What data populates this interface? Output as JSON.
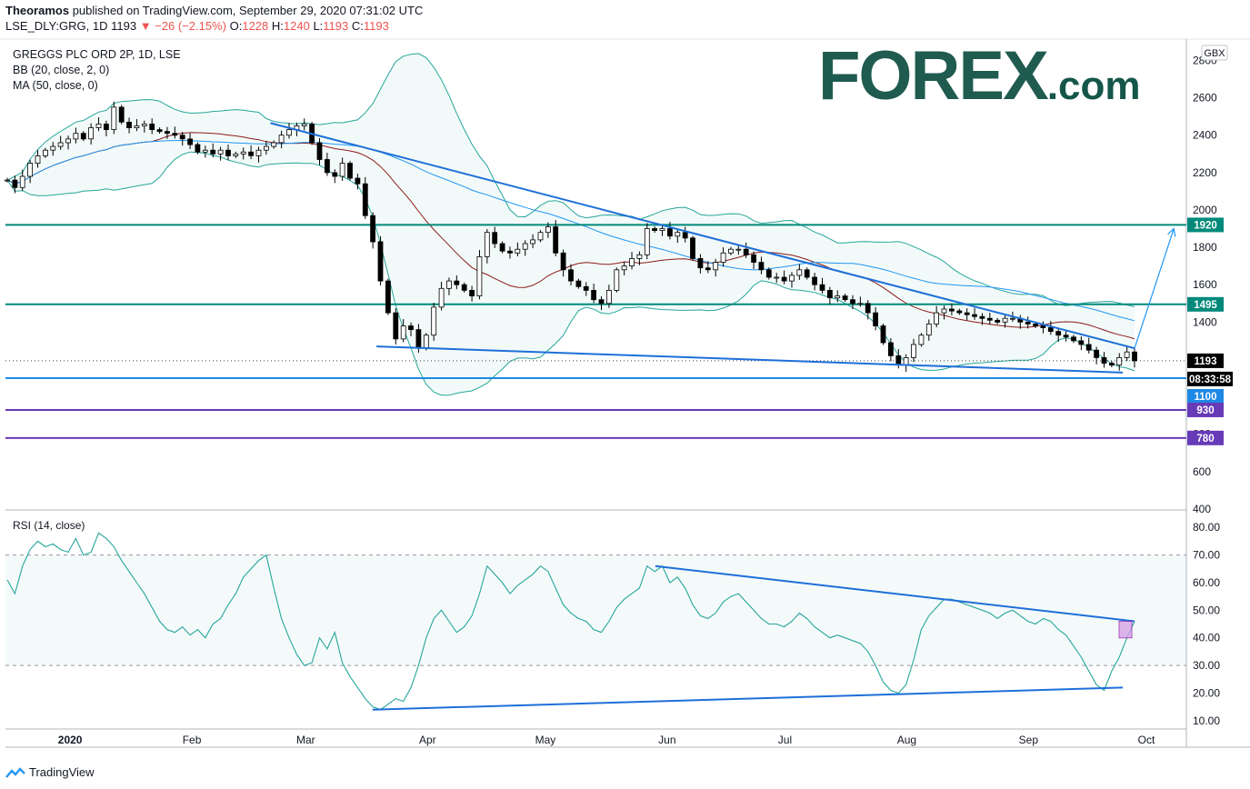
{
  "header": {
    "author": "Theoramos",
    "published_text": " published on TradingView.com, September 29, 2020 07:31:02 UTC",
    "symbol": "LSE_DLY:GRG, 1D",
    "price": "1193",
    "change": "−26 (−2.15%)",
    "o": "1228",
    "h": "1240",
    "l": "1193",
    "c": "1193"
  },
  "legend": {
    "title": "GREGGS PLC ORD 2P, 1D, LSE",
    "bb": "BB (20, close, 2, 0)",
    "ma": "MA (50, close, 0)"
  },
  "brand": {
    "name": "FOREX",
    "suffix": ".com"
  },
  "currency_badge": "GBX",
  "countdown": "08:33:58",
  "footer": {
    "label": "TradingView"
  },
  "colors": {
    "up": "#ffffff",
    "down": "#000000",
    "bb": "#26a69a",
    "ma": "#2196f3",
    "basis": "#8b1a1a",
    "level": "#00897b",
    "support": "#1e88e5",
    "purple": "#673ab7",
    "trendline": "#1e6fd9",
    "rsi": "#26a69a"
  },
  "chart_data": [
    {
      "type": "candlestick",
      "title": "GREGGS PLC ORD 2P, 1D, LSE",
      "currency": "GBX",
      "y_ticks": [
        400,
        600,
        800,
        1000,
        1200,
        1400,
        1600,
        1800,
        2000,
        2200,
        2400,
        2600,
        2800
      ],
      "ylim": [
        390,
        2890
      ],
      "x_ticks": [
        "2020",
        "Feb",
        "Mar",
        "Apr",
        "May",
        "Jun",
        "Jul",
        "Aug",
        "Sep",
        "Oct"
      ],
      "last_price": 1193,
      "horizontal_levels": [
        {
          "value": 1920,
          "label": "1920",
          "color": "#00897b"
        },
        {
          "value": 1495,
          "label": "1495",
          "color": "#00897b"
        },
        {
          "value": 1100,
          "label": "1100",
          "color": "#1e88e5"
        },
        {
          "value": 930,
          "label": "930",
          "color": "#673ab7"
        },
        {
          "value": 780,
          "label": "780",
          "color": "#673ab7"
        }
      ],
      "close_series": [
        2160,
        2120,
        2180,
        2250,
        2290,
        2320,
        2340,
        2360,
        2380,
        2410,
        2380,
        2440,
        2460,
        2430,
        2550,
        2470,
        2440,
        2450,
        2460,
        2430,
        2420,
        2410,
        2400,
        2380,
        2350,
        2310,
        2320,
        2300,
        2320,
        2290,
        2300,
        2310,
        2290,
        2320,
        2340,
        2360,
        2400,
        2430,
        2450,
        2460,
        2360,
        2270,
        2200,
        2180,
        2250,
        2170,
        2140,
        1970,
        1830,
        1620,
        1450,
        1310,
        1380,
        1360,
        1260,
        1330,
        1480,
        1580,
        1620,
        1600,
        1570,
        1540,
        1750,
        1880,
        1820,
        1780,
        1770,
        1790,
        1820,
        1840,
        1880,
        1910,
        1770,
        1680,
        1620,
        1590,
        1570,
        1520,
        1500,
        1570,
        1680,
        1700,
        1740,
        1760,
        1900,
        1890,
        1900,
        1860,
        1880,
        1850,
        1740,
        1690,
        1680,
        1720,
        1770,
        1790,
        1790,
        1760,
        1720,
        1680,
        1640,
        1640,
        1620,
        1650,
        1680,
        1640,
        1600,
        1570,
        1530,
        1540,
        1520,
        1500,
        1500,
        1450,
        1380,
        1290,
        1220,
        1170,
        1210,
        1280,
        1330,
        1390,
        1450,
        1470,
        1460,
        1450,
        1440,
        1430,
        1420,
        1410,
        1400,
        1420,
        1420,
        1400,
        1390,
        1380,
        1370,
        1350,
        1330,
        1320,
        1300,
        1280,
        1250,
        1210,
        1180,
        1170,
        1210,
        1240,
        1193
      ],
      "trendlines": [
        {
          "from": {
            "date": "2020-02-21",
            "value": 2465
          },
          "to": {
            "date": "2020-09-28",
            "value": 1260
          }
        },
        {
          "from": {
            "date": "2020-03-19",
            "value": 1270
          },
          "to": {
            "date": "2020-09-25",
            "value": 1130
          }
        }
      ],
      "arrow": {
        "from": {
          "date": "2020-09-28",
          "value": 1260
        },
        "to": {
          "date": "2020-10-08",
          "value": 1900
        }
      }
    },
    {
      "type": "line",
      "title": "RSI (14, close)",
      "y_ticks": [
        10,
        20,
        30,
        40,
        50,
        60,
        70,
        80
      ],
      "ylim": [
        7,
        85
      ],
      "bands": [
        30,
        70
      ],
      "values": [
        61,
        56,
        66,
        72,
        75,
        73,
        74,
        72,
        71,
        76,
        70,
        71,
        78,
        76,
        73,
        68,
        64,
        60,
        56,
        51,
        46,
        43,
        42,
        44,
        41,
        43,
        40,
        45,
        47,
        52,
        56,
        62,
        65,
        68,
        70,
        58,
        47,
        40,
        34,
        30,
        31,
        40,
        36,
        42,
        31,
        26,
        22,
        18,
        15,
        14,
        16,
        18,
        17,
        22,
        30,
        40,
        47,
        50,
        46,
        42,
        44,
        48,
        56,
        66,
        63,
        60,
        56,
        59,
        61,
        63,
        66,
        64,
        58,
        52,
        49,
        47,
        46,
        43,
        42,
        46,
        51,
        54,
        56,
        58,
        66,
        64,
        66,
        60,
        62,
        58,
        52,
        48,
        47,
        49,
        53,
        55,
        56,
        53,
        50,
        47,
        45,
        45,
        44,
        46,
        49,
        47,
        44,
        42,
        40,
        41,
        40,
        39,
        38,
        35,
        30,
        24,
        21,
        20,
        23,
        32,
        43,
        48,
        51,
        54,
        54,
        53,
        52,
        51,
        50,
        49,
        47,
        49,
        50,
        48,
        46,
        45,
        47,
        46,
        43,
        41,
        37,
        33,
        28,
        23,
        21,
        28,
        33,
        40,
        46
      ],
      "trendlines": [
        {
          "from": {
            "date": "2020-05-29",
            "value": 66
          },
          "to": {
            "date": "2020-09-28",
            "value": 46
          }
        },
        {
          "from": {
            "date": "2020-03-18",
            "value": 14
          },
          "to": {
            "date": "2020-09-25",
            "value": 22
          }
        }
      ]
    }
  ]
}
